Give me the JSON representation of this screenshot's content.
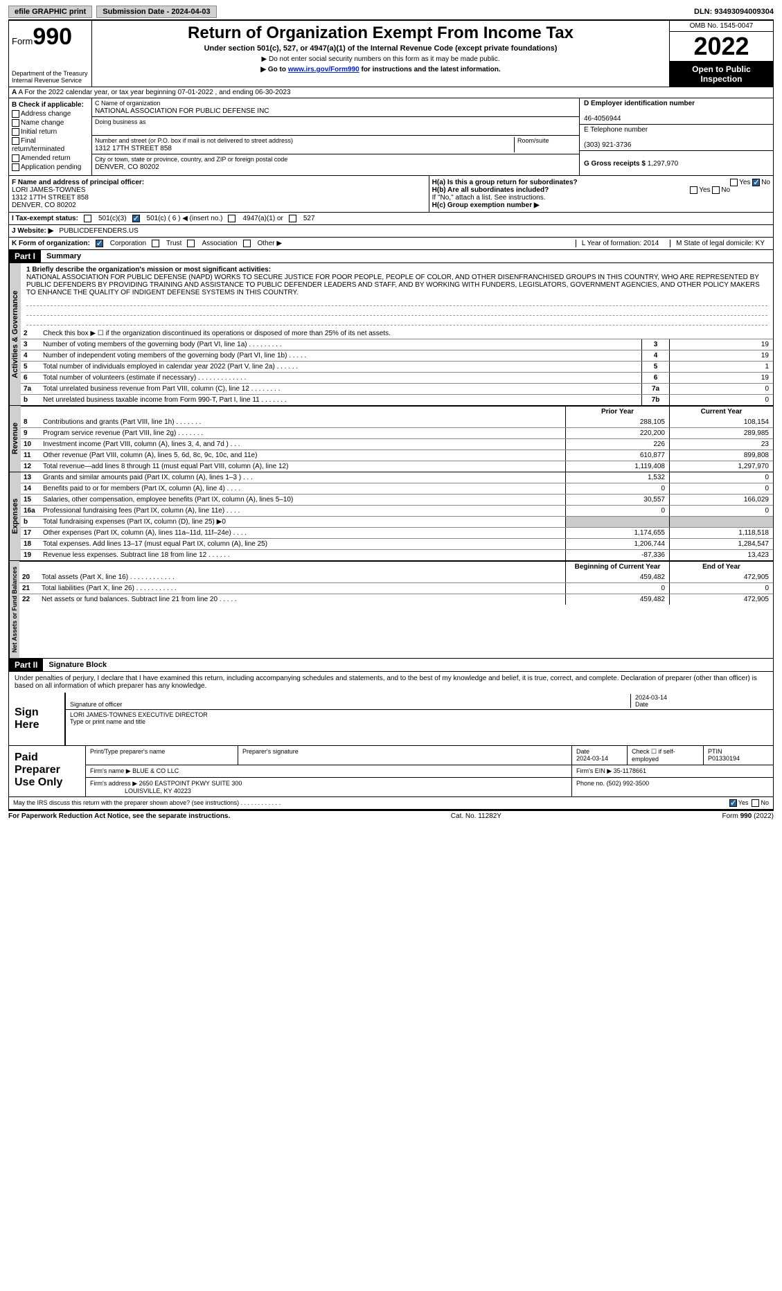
{
  "topbar": {
    "efile": "efile GRAPHIC print",
    "submission": "Submission Date - 2024-04-03",
    "dln": "DLN: 93493094009304"
  },
  "header": {
    "form_word": "Form",
    "form_num": "990",
    "dept": "Department of the Treasury",
    "irs": "Internal Revenue Service",
    "title": "Return of Organization Exempt From Income Tax",
    "sub": "Under section 501(c), 527, or 4947(a)(1) of the Internal Revenue Code (except private foundations)",
    "sub2": "▶ Do not enter social security numbers on this form as it may be made public.",
    "sub3_pre": "▶ Go to ",
    "sub3_link": "www.irs.gov/Form990",
    "sub3_post": " for instructions and the latest information.",
    "omb": "OMB No. 1545-0047",
    "year": "2022",
    "inspect": "Open to Public Inspection"
  },
  "row_a": "A For the 2022 calendar year, or tax year beginning 07-01-2022    , and ending 06-30-2023",
  "col_b": {
    "title": "B Check if applicable:",
    "items": [
      "Address change",
      "Name change",
      "Initial return",
      "Final return/terminated",
      "Amended return",
      "Application pending"
    ]
  },
  "col_c": {
    "name_lbl": "C Name of organization",
    "name": "NATIONAL ASSOCIATION FOR PUBLIC DEFENSE INC",
    "dba_lbl": "Doing business as",
    "dba": "",
    "addr_lbl": "Number and street (or P.O. box if mail is not delivered to street address)",
    "addr": "1312 17TH STREET 858",
    "room_lbl": "Room/suite",
    "city_lbl": "City or town, state or province, country, and ZIP or foreign postal code",
    "city": "DENVER, CO  80202"
  },
  "col_d": {
    "ein_lbl": "D Employer identification number",
    "ein": "46-4056944",
    "tel_lbl": "E Telephone number",
    "tel": "(303) 921-3736",
    "gross_lbl": "G Gross receipts $",
    "gross": "1,297,970"
  },
  "fh": {
    "f_lbl": "F Name and address of principal officer:",
    "f_name": "LORI JAMES-TOWNES",
    "f_addr1": "1312 17TH STREET 858",
    "f_addr2": "DENVER, CO  80202",
    "ha": "H(a)  Is this a group return for subordinates?",
    "hb": "H(b)  Are all subordinates included?",
    "hb_note": "If \"No,\" attach a list. See instructions.",
    "hc": "H(c)  Group exemption number ▶"
  },
  "status": {
    "i": "I   Tax-exempt status:",
    "s1": "501(c)(3)",
    "s2": "501(c) ( 6 ) ◀ (insert no.)",
    "s3": "4947(a)(1) or",
    "s4": "527"
  },
  "web": {
    "j": "J   Website: ▶",
    "url": "PUBLICDEFENDERS.US"
  },
  "kform": {
    "k": "K Form of organization:",
    "opts": [
      "Corporation",
      "Trust",
      "Association",
      "Other ▶"
    ],
    "l": "L Year of formation: 2014",
    "m": "M State of legal domicile: KY"
  },
  "part1": {
    "hdr": "Part I",
    "title": "Summary"
  },
  "mission": {
    "lbl": "1  Briefly describe the organization's mission or most significant activities:",
    "text": "NATIONAL ASSOCIATION FOR PUBLIC DEFENSE (NAPD) WORKS TO SECURE JUSTICE FOR POOR PEOPLE, PEOPLE OF COLOR, AND OTHER DISENFRANCHISED GROUPS IN THIS COUNTRY, WHO ARE REPRESENTED BY PUBLIC DEFENDERS BY PROVIDING TRAINING AND ASSISTANCE TO PUBLIC DEFENDER LEADERS AND STAFF, AND BY WORKING WITH FUNDERS, LEGISLATORS, GOVERNMENT AGENCIES, AND OTHER POLICY MAKERS TO ENHANCE THE QUALITY OF INDIGENT DEFENSE SYSTEMS IN THIS COUNTRY."
  },
  "gov_lines": [
    {
      "n": "2",
      "d": "Check this box ▶ ☐  if the organization discontinued its operations or disposed of more than 25% of its net assets."
    },
    {
      "n": "3",
      "d": "Number of voting members of the governing body (Part VI, line 1a)   .   .   .   .   .   .   .   .   .",
      "b": "3",
      "v": "19"
    },
    {
      "n": "4",
      "d": "Number of independent voting members of the governing body (Part VI, line 1b)   .   .   .   .   .",
      "b": "4",
      "v": "19"
    },
    {
      "n": "5",
      "d": "Total number of individuals employed in calendar year 2022 (Part V, line 2a)   .   .   .   .   .   .",
      "b": "5",
      "v": "1"
    },
    {
      "n": "6",
      "d": "Total number of volunteers (estimate if necessary)   .   .   .   .   .   .   .   .   .   .   .   .   .",
      "b": "6",
      "v": "19"
    },
    {
      "n": "7a",
      "d": "Total unrelated business revenue from Part VIII, column (C), line 12   .   .   .   .   .   .   .   .",
      "b": "7a",
      "v": "0"
    },
    {
      "n": "b",
      "d": "Net unrelated business taxable income from Form 990-T, Part I, line 11   .   .   .   .   .   .   .",
      "b": "7b",
      "v": "0"
    }
  ],
  "rev_hdr": {
    "prior": "Prior Year",
    "curr": "Current Year"
  },
  "rev_lines": [
    {
      "n": "8",
      "d": "Contributions and grants (Part VIII, line 1h)   .   .   .   .   .   .   .",
      "p": "288,105",
      "c": "108,154"
    },
    {
      "n": "9",
      "d": "Program service revenue (Part VIII, line 2g)   .   .   .   .   .   .   .",
      "p": "220,200",
      "c": "289,985"
    },
    {
      "n": "10",
      "d": "Investment income (Part VIII, column (A), lines 3, 4, and 7d )   .   .   .",
      "p": "226",
      "c": "23"
    },
    {
      "n": "11",
      "d": "Other revenue (Part VIII, column (A), lines 5, 6d, 8c, 9c, 10c, and 11e)",
      "p": "610,877",
      "c": "899,808"
    },
    {
      "n": "12",
      "d": "Total revenue—add lines 8 through 11 (must equal Part VIII, column (A), line 12)",
      "p": "1,119,408",
      "c": "1,297,970"
    }
  ],
  "exp_lines": [
    {
      "n": "13",
      "d": "Grants and similar amounts paid (Part IX, column (A), lines 1–3 )   .   .   .",
      "p": "1,532",
      "c": "0"
    },
    {
      "n": "14",
      "d": "Benefits paid to or for members (Part IX, column (A), line 4)   .   .   .   .",
      "p": "0",
      "c": "0"
    },
    {
      "n": "15",
      "d": "Salaries, other compensation, employee benefits (Part IX, column (A), lines 5–10)",
      "p": "30,557",
      "c": "166,029"
    },
    {
      "n": "16a",
      "d": "Professional fundraising fees (Part IX, column (A), line 11e)   .   .   .   .",
      "p": "0",
      "c": "0"
    },
    {
      "n": "b",
      "d": "Total fundraising expenses (Part IX, column (D), line 25) ▶0",
      "p": "",
      "c": "",
      "shaded": true
    },
    {
      "n": "17",
      "d": "Other expenses (Part IX, column (A), lines 11a–11d, 11f–24e)   .   .   .   .",
      "p": "1,174,655",
      "c": "1,118,518"
    },
    {
      "n": "18",
      "d": "Total expenses. Add lines 13–17 (must equal Part IX, column (A), line 25)",
      "p": "1,206,744",
      "c": "1,284,547"
    },
    {
      "n": "19",
      "d": "Revenue less expenses. Subtract line 18 from line 12   .   .   .   .   .   .",
      "p": "-87,336",
      "c": "13,423"
    }
  ],
  "na_hdr": {
    "beg": "Beginning of Current Year",
    "end": "End of Year"
  },
  "na_lines": [
    {
      "n": "20",
      "d": "Total assets (Part X, line 16)   .   .   .   .   .   .   .   .   .   .   .   .",
      "p": "459,482",
      "c": "472,905"
    },
    {
      "n": "21",
      "d": "Total liabilities (Part X, line 26)   .   .   .   .   .   .   .   .   .   .   .",
      "p": "0",
      "c": "0"
    },
    {
      "n": "22",
      "d": "Net assets or fund balances. Subtract line 21 from line 20   .   .   .   .   .",
      "p": "459,482",
      "c": "472,905"
    }
  ],
  "part2": {
    "hdr": "Part II",
    "title": "Signature Block"
  },
  "sig": {
    "decl": "Under penalties of perjury, I declare that I have examined this return, including accompanying schedules and statements, and to the best of my knowledge and belief, it is true, correct, and complete. Declaration of preparer (other than officer) is based on all information of which preparer has any knowledge.",
    "sign_here": "Sign Here",
    "sig_lbl": "Signature of officer",
    "date": "2024-03-14",
    "date_lbl": "Date",
    "name": "LORI JAMES-TOWNES  EXECUTIVE DIRECTOR",
    "name_lbl": "Type or print name and title"
  },
  "prep": {
    "label": "Paid Preparer Use Only",
    "h1": "Print/Type preparer's name",
    "h2": "Preparer's signature",
    "h3": "Date",
    "h3v": "2024-03-14",
    "h4": "Check ☐ if self-employed",
    "h5": "PTIN",
    "h5v": "P01330194",
    "firm_lbl": "Firm's name      ▶",
    "firm": "BLUE & CO LLC",
    "ein_lbl": "Firm's EIN ▶",
    "ein": "35-1178661",
    "addr_lbl": "Firm's address ▶",
    "addr1": "2650 EASTPOINT PKWY SUITE 300",
    "addr2": "LOUISVILLE, KY  40223",
    "phone_lbl": "Phone no.",
    "phone": "(502) 992-3500"
  },
  "discuss": "May the IRS discuss this return with the preparer shown above? (see instructions)   .   .   .   .   .   .   .   .   .   .   .   .",
  "footer": {
    "left": "For Paperwork Reduction Act Notice, see the separate instructions.",
    "mid": "Cat. No. 11282Y",
    "right": "Form 990 (2022)"
  },
  "vtabs": {
    "gov": "Activities & Governance",
    "rev": "Revenue",
    "exp": "Expenses",
    "na": "Net Assets or Fund Balances"
  },
  "yn": {
    "yes": "Yes",
    "no": "No"
  }
}
